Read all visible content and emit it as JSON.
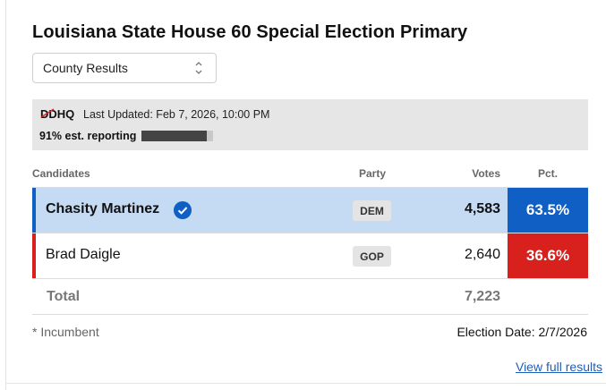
{
  "title": "Louisiana State House 60 Special Election Primary",
  "selector": {
    "value": "County Results"
  },
  "status": {
    "logo_text": "DDHQ",
    "last_updated": "Last Updated: Feb 7, 2026, 10:00 PM",
    "reporting_label": "91% est. reporting",
    "reporting_fraction": 0.91
  },
  "table": {
    "headers": {
      "candidates": "Candidates",
      "party": "Party",
      "votes": "Votes",
      "pct": "Pct."
    },
    "rows": [
      {
        "name": "Chasity Martinez",
        "party": "DEM",
        "votes": "4,583",
        "pct": "63.5%",
        "winner": true,
        "color": "#0f5fc4"
      },
      {
        "name": "Brad Daigle",
        "party": "GOP",
        "votes": "2,640",
        "pct": "36.6%",
        "winner": false,
        "color": "#d8201d"
      }
    ],
    "total_label": "Total",
    "total_votes": "7,223"
  },
  "footer": {
    "incumbent_note": "* Incumbent",
    "election_date": "Election Date: 2/7/2026",
    "view_full": "View full results"
  },
  "colors": {
    "winner_row": "#c5dbf3",
    "dem": "#0f5fc4",
    "gop": "#d8201d"
  }
}
